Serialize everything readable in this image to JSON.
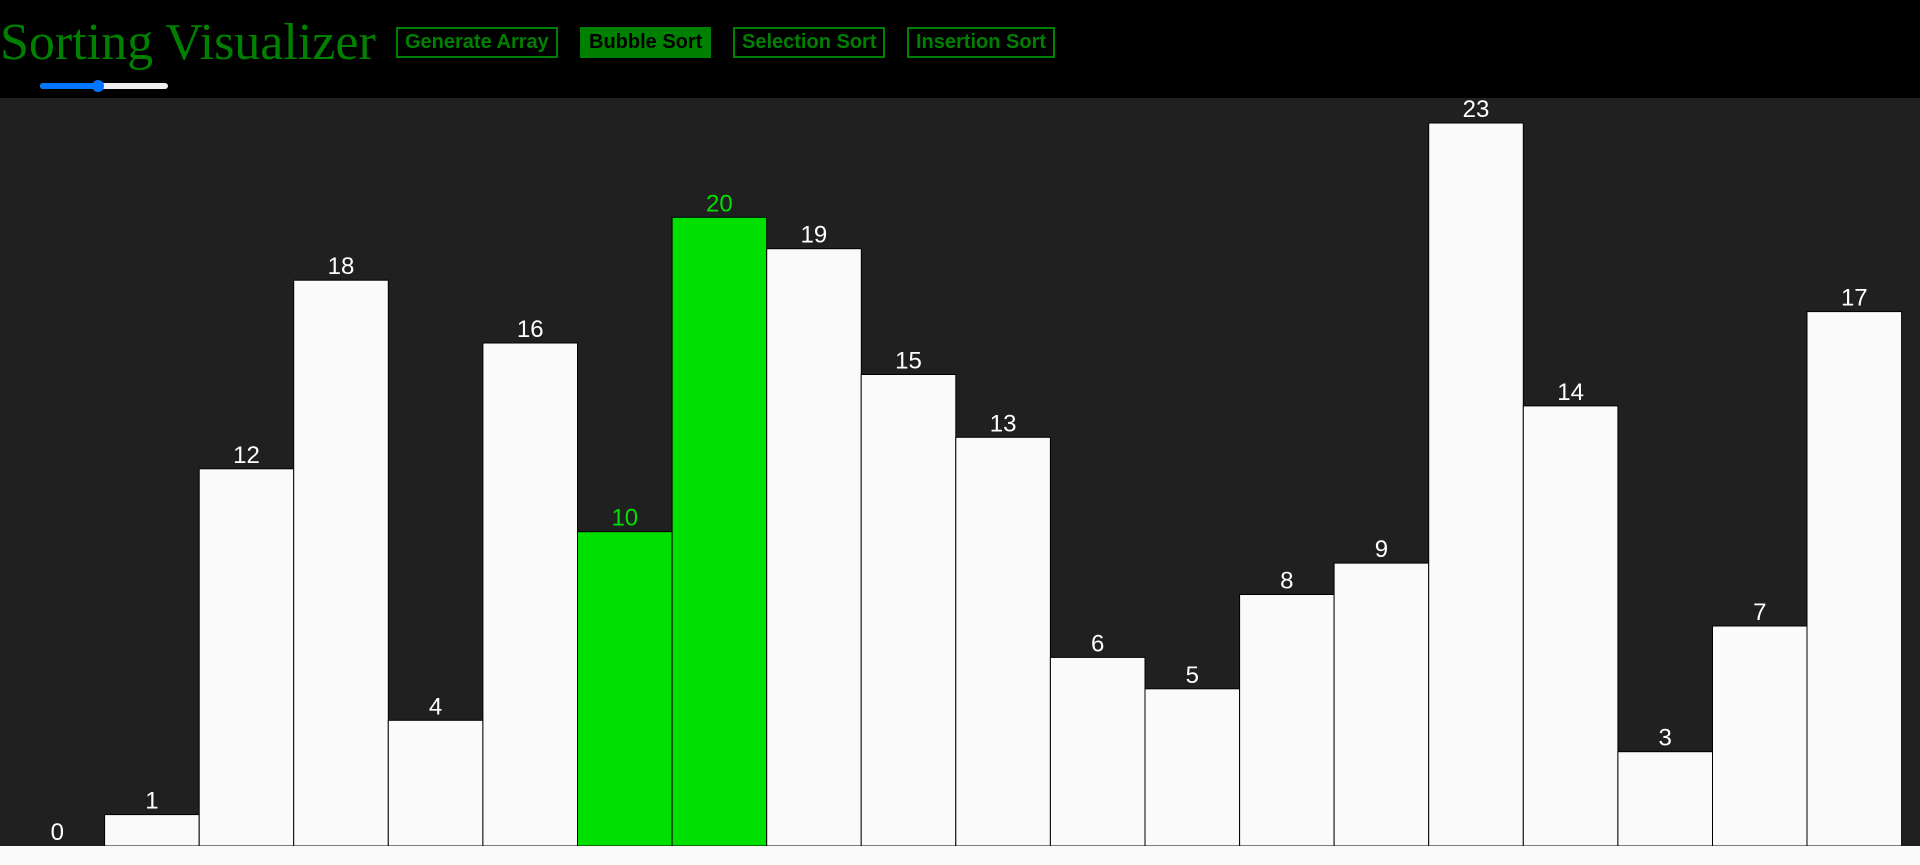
{
  "header": {
    "title": "Sorting Visualizer",
    "buttons": {
      "generate": "Generate Array",
      "bubble": "Bubble Sort",
      "selection": "Selection Sort",
      "insertion": "Insertion Sort"
    },
    "active_button": "bubble"
  },
  "speed_slider": {
    "min": 0,
    "max": 100,
    "value": 45
  },
  "colors": {
    "accent": "#008000",
    "bar_default": "#fafafa",
    "bar_compare": "#00e000",
    "label_default": "#ffffff",
    "label_compare": "#00e000",
    "background": "#202020",
    "slider": "#0075ff"
  },
  "chart_data": {
    "type": "bar",
    "values": [
      0,
      1,
      12,
      18,
      4,
      16,
      10,
      20,
      19,
      15,
      13,
      6,
      5,
      8,
      9,
      23,
      14,
      3,
      7,
      17
    ],
    "highlighted_indices": [
      6,
      7
    ],
    "ylim": [
      0,
      23
    ]
  }
}
